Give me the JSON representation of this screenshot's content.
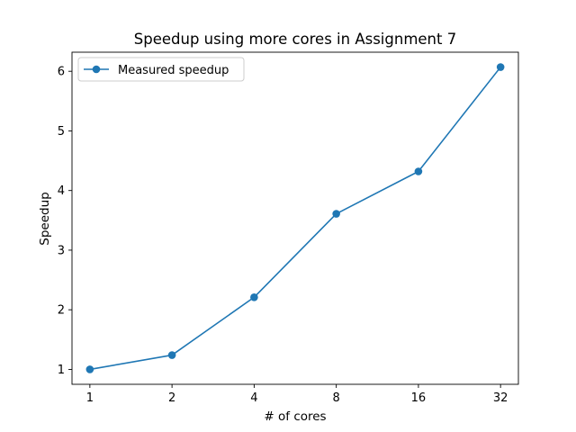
{
  "chart_data": {
    "type": "line",
    "title": "Speedup using more cores in Assignment 7",
    "xlabel": "# of cores",
    "ylabel": "Speedup",
    "x_scale": "log2",
    "categories": [
      "1",
      "2",
      "4",
      "8",
      "16",
      "32"
    ],
    "x": [
      1,
      2,
      4,
      8,
      16,
      32
    ],
    "series": [
      {
        "name": "Measured speedup",
        "values": [
          1.0,
          1.24,
          2.21,
          3.61,
          4.32,
          6.07
        ],
        "color": "#1f77b4",
        "marker": "circle"
      }
    ],
    "xlim": [
      0.86,
      37.2
    ],
    "ylim": [
      0.75,
      6.32
    ],
    "yticks": [
      1,
      2,
      3,
      4,
      5,
      6
    ],
    "grid": false,
    "legend": "top-left"
  }
}
